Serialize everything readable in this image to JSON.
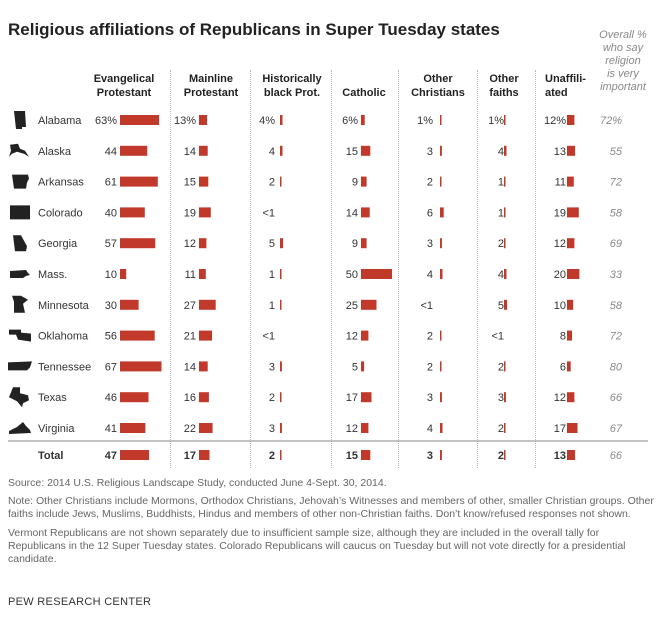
{
  "title": "Religious affiliations of Republicans in Super Tuesday states",
  "overall_header": "Overall %\nwho say\nreligion\nis very\nimportant",
  "columns": [
    {
      "key": "evangelical",
      "label": "Evangelical\nProtestant"
    },
    {
      "key": "mainline",
      "label": "Mainline\nProtestant"
    },
    {
      "key": "black_prot",
      "label": "Historically\nblack Prot."
    },
    {
      "key": "catholic",
      "label": "Catholic"
    },
    {
      "key": "other_christians",
      "label": "Other\nChristians"
    },
    {
      "key": "other_faiths",
      "label": "Other\nfaiths"
    },
    {
      "key": "unaffiliated",
      "label": "Unaffili-\nated"
    }
  ],
  "colors": {
    "bar": "#c0392b",
    "text": "#333333",
    "italic_value": "#888888",
    "rule": "#888888"
  },
  "icons": [
    "alabama-map-icon",
    "alaska-map-icon",
    "arkansas-map-icon",
    "colorado-map-icon",
    "georgia-map-icon",
    "massachusetts-map-icon",
    "minnesota-map-icon",
    "oklahoma-map-icon",
    "tennessee-map-icon",
    "texas-map-icon",
    "virginia-map-icon"
  ],
  "chart_data": {
    "type": "table",
    "unit": "%",
    "rows": [
      {
        "state": "Alabama",
        "labels": [
          "63%",
          "13%",
          "4%",
          "6%",
          "1%",
          "1%",
          "12%"
        ],
        "values": [
          63,
          13,
          4,
          6,
          1,
          1,
          12
        ],
        "overall_label": "72%",
        "overall": 72
      },
      {
        "state": "Alaska",
        "labels": [
          "44",
          "14",
          "4",
          "15",
          "3",
          "4",
          "13"
        ],
        "values": [
          44,
          14,
          4,
          15,
          3,
          4,
          13
        ],
        "overall_label": "55",
        "overall": 55
      },
      {
        "state": "Arkansas",
        "labels": [
          "61",
          "15",
          "2",
          "9",
          "2",
          "1",
          "11"
        ],
        "values": [
          61,
          15,
          2,
          9,
          2,
          1,
          11
        ],
        "overall_label": "72",
        "overall": 72
      },
      {
        "state": "Colorado",
        "labels": [
          "40",
          "19",
          "<1",
          "14",
          "6",
          "1",
          "19"
        ],
        "values": [
          40,
          19,
          0,
          14,
          6,
          1,
          19
        ],
        "overall_label": "58",
        "overall": 58
      },
      {
        "state": "Georgia",
        "labels": [
          "57",
          "12",
          "5",
          "9",
          "3",
          "2",
          "12"
        ],
        "values": [
          57,
          12,
          5,
          9,
          3,
          2,
          12
        ],
        "overall_label": "69",
        "overall": 69
      },
      {
        "state": "Mass.",
        "labels": [
          "10",
          "11",
          "1",
          "50",
          "4",
          "4",
          "20"
        ],
        "values": [
          10,
          11,
          1,
          50,
          4,
          4,
          20
        ],
        "overall_label": "33",
        "overall": 33
      },
      {
        "state": "Minnesota",
        "labels": [
          "30",
          "27",
          "1",
          "25",
          "<1",
          "5",
          "10"
        ],
        "values": [
          30,
          27,
          1,
          25,
          0,
          5,
          10
        ],
        "overall_label": "58",
        "overall": 58
      },
      {
        "state": "Oklahoma",
        "labels": [
          "56",
          "21",
          "<1",
          "12",
          "2",
          "<1",
          "8"
        ],
        "values": [
          56,
          21,
          0,
          12,
          2,
          0,
          8
        ],
        "overall_label": "72",
        "overall": 72
      },
      {
        "state": "Tennessee",
        "labels": [
          "67",
          "14",
          "3",
          "5",
          "2",
          "2",
          "6"
        ],
        "values": [
          67,
          14,
          3,
          5,
          2,
          2,
          6
        ],
        "overall_label": "80",
        "overall": 80
      },
      {
        "state": "Texas",
        "labels": [
          "46",
          "16",
          "2",
          "17",
          "3",
          "3",
          "12"
        ],
        "values": [
          46,
          16,
          2,
          17,
          3,
          3,
          12
        ],
        "overall_label": "66",
        "overall": 66
      },
      {
        "state": "Virginia",
        "labels": [
          "41",
          "22",
          "3",
          "12",
          "4",
          "2",
          "17"
        ],
        "values": [
          41,
          22,
          3,
          12,
          4,
          2,
          17
        ],
        "overall_label": "67",
        "overall": 67
      }
    ],
    "total": {
      "state": "Total",
      "labels": [
        "47",
        "17",
        "2",
        "15",
        "3",
        "2",
        "13"
      ],
      "values": [
        47,
        17,
        2,
        15,
        3,
        2,
        13
      ],
      "overall_label": "66",
      "overall": 66
    }
  },
  "notes": {
    "source": "Source: 2014 U.S. Religious Landscape Study, conducted June 4-Sept. 30, 2014.",
    "note": "Note: Other Christians include Mormons, Orthodox Christians, Jehovah’s Witnesses and members of other, smaller Christian groups. Other faiths include Jews, Muslims, Buddhists, Hindus and members of other non-Christian faiths. Don’t know/refused responses not shown.",
    "vermont": "Vermont Republicans are not shown separately due to insufficient sample size, although they are included in the overall tally for Republicans in the 12 Super Tuesday states. Colorado Republicans will caucus on Tuesday but will not vote directly for a presidential candidate.",
    "publisher": "PEW RESEARCH CENTER"
  }
}
